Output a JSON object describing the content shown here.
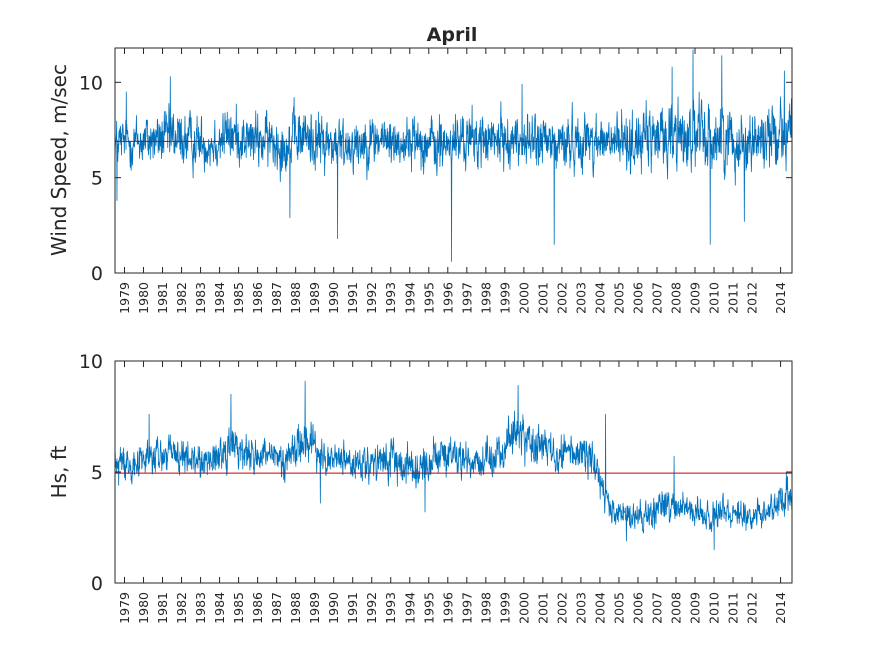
{
  "chart_data": [
    {
      "type": "line",
      "title": "April",
      "xlabel": "",
      "ylabel": "Wind Speed, m/sec",
      "xlim": [
        1979,
        2014.6
      ],
      "ylim": [
        0,
        11.8
      ],
      "yticks": [
        0,
        5,
        10
      ],
      "x_tick_labels": [
        "1979",
        "1980",
        "1981",
        "1982",
        "1983",
        "1984",
        "1985",
        "1986",
        "1987",
        "1988",
        "1989",
        "1990",
        "1991",
        "1992",
        "1993",
        "1994",
        "1995",
        "1996",
        "1997",
        "1998",
        "1999",
        "2000",
        "2001",
        "2002",
        "2003",
        "2004",
        "2005",
        "2006",
        "2007",
        "2008",
        "2009",
        "2010",
        "2011",
        "2012",
        "2014"
      ],
      "x_tick_positions": [
        1979.5,
        1980.5,
        1981.5,
        1982.5,
        1983.5,
        1984.5,
        1985.5,
        1986.5,
        1987.5,
        1988.5,
        1989.5,
        1990.5,
        1991.5,
        1992.5,
        1993.5,
        1994.5,
        1995.5,
        1996.5,
        1997.5,
        1998.5,
        1999.5,
        2000.5,
        2001.5,
        2002.5,
        2003.5,
        2004.5,
        2005.5,
        2006.5,
        2007.5,
        2008.5,
        2009.5,
        2010.5,
        2011.5,
        2012.5,
        2014.0
      ],
      "mean_line": 6.9,
      "series_color": "#0072BD",
      "mean_color": "#C00000",
      "yearly_profile": {
        "x": [
          1979,
          1980,
          1981,
          1982,
          1983,
          1984,
          1985,
          1986,
          1987,
          1988,
          1989,
          1990,
          1991,
          1992,
          1993,
          1994,
          1995,
          1996,
          1997,
          1998,
          1999,
          2000,
          2001,
          2002,
          2003,
          2004,
          2005,
          2006,
          2007,
          2008,
          2009,
          2010,
          2011,
          2012,
          2013,
          2014
        ],
        "center": [
          6.8,
          6.9,
          7.0,
          7.1,
          6.9,
          6.8,
          7.3,
          7.0,
          6.9,
          6.8,
          7.2,
          6.8,
          6.7,
          6.9,
          7.0,
          6.8,
          7.0,
          6.6,
          6.9,
          7.0,
          6.9,
          7.0,
          6.9,
          6.8,
          6.9,
          7.0,
          6.8,
          6.9,
          7.0,
          7.2,
          7.3,
          7.1,
          7.1,
          6.9,
          7.0,
          7.6
        ],
        "spread": [
          1.0,
          1.0,
          1.1,
          1.2,
          1.1,
          1.0,
          1.2,
          1.1,
          1.1,
          1.2,
          1.2,
          1.2,
          1.1,
          1.1,
          1.0,
          1.0,
          1.1,
          1.2,
          1.1,
          1.1,
          1.1,
          1.0,
          1.1,
          1.2,
          1.1,
          1.1,
          1.2,
          1.2,
          1.2,
          1.4,
          1.5,
          1.4,
          1.4,
          1.3,
          1.3,
          1.4
        ]
      },
      "extremes": [
        {
          "x": 1979.1,
          "y": 3.8
        },
        {
          "x": 1979.6,
          "y": 9.5
        },
        {
          "x": 1981.9,
          "y": 10.3
        },
        {
          "x": 1988.2,
          "y": 2.9
        },
        {
          "x": 1990.7,
          "y": 1.8
        },
        {
          "x": 1996.7,
          "y": 0.6
        },
        {
          "x": 2000.4,
          "y": 9.9
        },
        {
          "x": 2002.1,
          "y": 1.5
        },
        {
          "x": 2008.3,
          "y": 10.8
        },
        {
          "x": 2009.4,
          "y": 11.7
        },
        {
          "x": 2010.3,
          "y": 1.5
        },
        {
          "x": 2010.9,
          "y": 11.4
        },
        {
          "x": 2012.1,
          "y": 2.7
        },
        {
          "x": 2014.2,
          "y": 10.6
        }
      ]
    },
    {
      "type": "line",
      "title": "",
      "xlabel": "",
      "ylabel": "Hs, ft",
      "xlim": [
        1979,
        2014.6
      ],
      "ylim": [
        0,
        10
      ],
      "yticks": [
        0,
        5,
        10
      ],
      "x_tick_labels": [
        "1979",
        "1980",
        "1981",
        "1982",
        "1983",
        "1984",
        "1985",
        "1986",
        "1987",
        "1988",
        "1989",
        "1990",
        "1991",
        "1992",
        "1993",
        "1994",
        "1995",
        "1996",
        "1997",
        "1998",
        "1999",
        "2000",
        "2001",
        "2002",
        "2003",
        "2004",
        "2005",
        "2006",
        "2007",
        "2008",
        "2009",
        "2010",
        "2011",
        "2012",
        "2014"
      ],
      "x_tick_positions": [
        1979.5,
        1980.5,
        1981.5,
        1982.5,
        1983.5,
        1984.5,
        1985.5,
        1986.5,
        1987.5,
        1988.5,
        1989.5,
        1990.5,
        1991.5,
        1992.5,
        1993.5,
        1994.5,
        1995.5,
        1996.5,
        1997.5,
        1998.5,
        1999.5,
        2000.5,
        2001.5,
        2002.5,
        2003.5,
        2004.5,
        2005.5,
        2006.5,
        2007.5,
        2008.5,
        2009.5,
        2010.5,
        2011.5,
        2012.5,
        2014.0
      ],
      "mean_line": 4.95,
      "series_color": "#0072BD",
      "mean_color": "#C00000",
      "yearly_profile": {
        "x": [
          1979,
          1980,
          1981,
          1982,
          1983,
          1984,
          1985,
          1986,
          1987,
          1988,
          1989,
          1990,
          1991,
          1992,
          1993,
          1994,
          1995,
          1996,
          1997,
          1998,
          1999,
          2000,
          2001,
          2002,
          2003,
          2004,
          2005,
          2006,
          2007,
          2008,
          2009,
          2010,
          2011,
          2012,
          2013,
          2014
        ],
        "center": [
          5.4,
          5.5,
          5.6,
          5.8,
          5.5,
          5.5,
          6.2,
          5.8,
          5.6,
          5.6,
          6.6,
          5.5,
          5.6,
          5.2,
          5.4,
          5.5,
          5.2,
          5.7,
          5.6,
          5.5,
          5.6,
          6.8,
          6.2,
          6.0,
          5.9,
          5.8,
          3.2,
          2.9,
          3.1,
          3.6,
          3.3,
          3.0,
          3.3,
          3.1,
          3.1,
          3.8
        ],
        "spread": [
          0.6,
          0.6,
          0.7,
          0.7,
          0.6,
          0.6,
          0.8,
          0.7,
          0.6,
          0.7,
          0.9,
          0.6,
          0.6,
          0.6,
          0.6,
          0.7,
          0.6,
          0.7,
          0.6,
          0.6,
          0.6,
          0.9,
          0.7,
          0.7,
          0.7,
          0.7,
          0.5,
          0.5,
          0.5,
          0.7,
          0.5,
          0.5,
          0.5,
          0.5,
          0.5,
          0.6
        ]
      },
      "extremes": [
        {
          "x": 1979.2,
          "y": 4.4
        },
        {
          "x": 1980.8,
          "y": 7.6
        },
        {
          "x": 1985.1,
          "y": 8.5
        },
        {
          "x": 1989.0,
          "y": 9.1
        },
        {
          "x": 1989.8,
          "y": 3.6
        },
        {
          "x": 1995.3,
          "y": 3.2
        },
        {
          "x": 2000.2,
          "y": 8.9
        },
        {
          "x": 2004.8,
          "y": 7.6
        },
        {
          "x": 2005.9,
          "y": 1.9
        },
        {
          "x": 2008.4,
          "y": 5.7
        },
        {
          "x": 2010.5,
          "y": 1.5
        },
        {
          "x": 2014.3,
          "y": 5.0
        }
      ]
    }
  ]
}
